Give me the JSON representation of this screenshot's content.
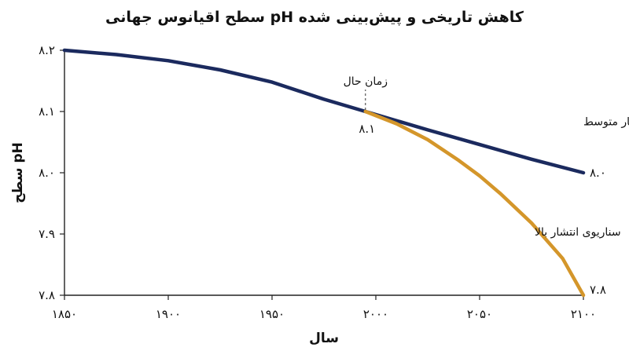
{
  "chart_data": {
    "type": "line",
    "title": "کاهش تاریخی و پیش‌بینی شده pH سطح اقیانوس جهانی",
    "xlabel": "سال",
    "ylabel": "pH سطح",
    "xlim": [
      1850,
      2100
    ],
    "ylim": [
      7.8,
      8.2
    ],
    "x_ticks": [
      1850,
      1900,
      1950,
      2000,
      2050,
      2100
    ],
    "x_tick_labels": [
      "۱۸۵۰",
      "۱۹۰۰",
      "۱۹۵۰",
      "۲۰۰۰",
      "۲۰۵۰",
      "۲۱۰۰"
    ],
    "y_ticks": [
      7.8,
      7.9,
      8.0,
      8.1,
      8.2
    ],
    "y_tick_labels": [
      "۷.۸",
      "۷.۹",
      "۸.۰",
      "۸.۱",
      "۸.۲"
    ],
    "grid": false,
    "series": [
      {
        "name": "سناریوی انتشار متوسط",
        "color": "#1b2a5e",
        "x": [
          1850,
          1875,
          1900,
          1925,
          1950,
          1975,
          1995,
          2025,
          2050,
          2075,
          2100
        ],
        "y": [
          8.2,
          8.193,
          8.183,
          8.168,
          8.148,
          8.12,
          8.1,
          8.07,
          8.046,
          8.022,
          8.0
        ],
        "end_label": "۸.۰"
      },
      {
        "name": "سناریوی انتشار بالا",
        "color": "#d4962a",
        "x": [
          1995,
          2010,
          2025,
          2040,
          2050,
          2060,
          2075,
          2090,
          2100
        ],
        "y": [
          8.1,
          8.08,
          8.054,
          8.02,
          7.995,
          7.966,
          7.918,
          7.86,
          7.8
        ],
        "end_label": "۷.۸"
      }
    ],
    "annotations": [
      {
        "text": "زمان حال",
        "x": 1995,
        "y": 8.1,
        "value_label": "۸.۱"
      }
    ]
  }
}
